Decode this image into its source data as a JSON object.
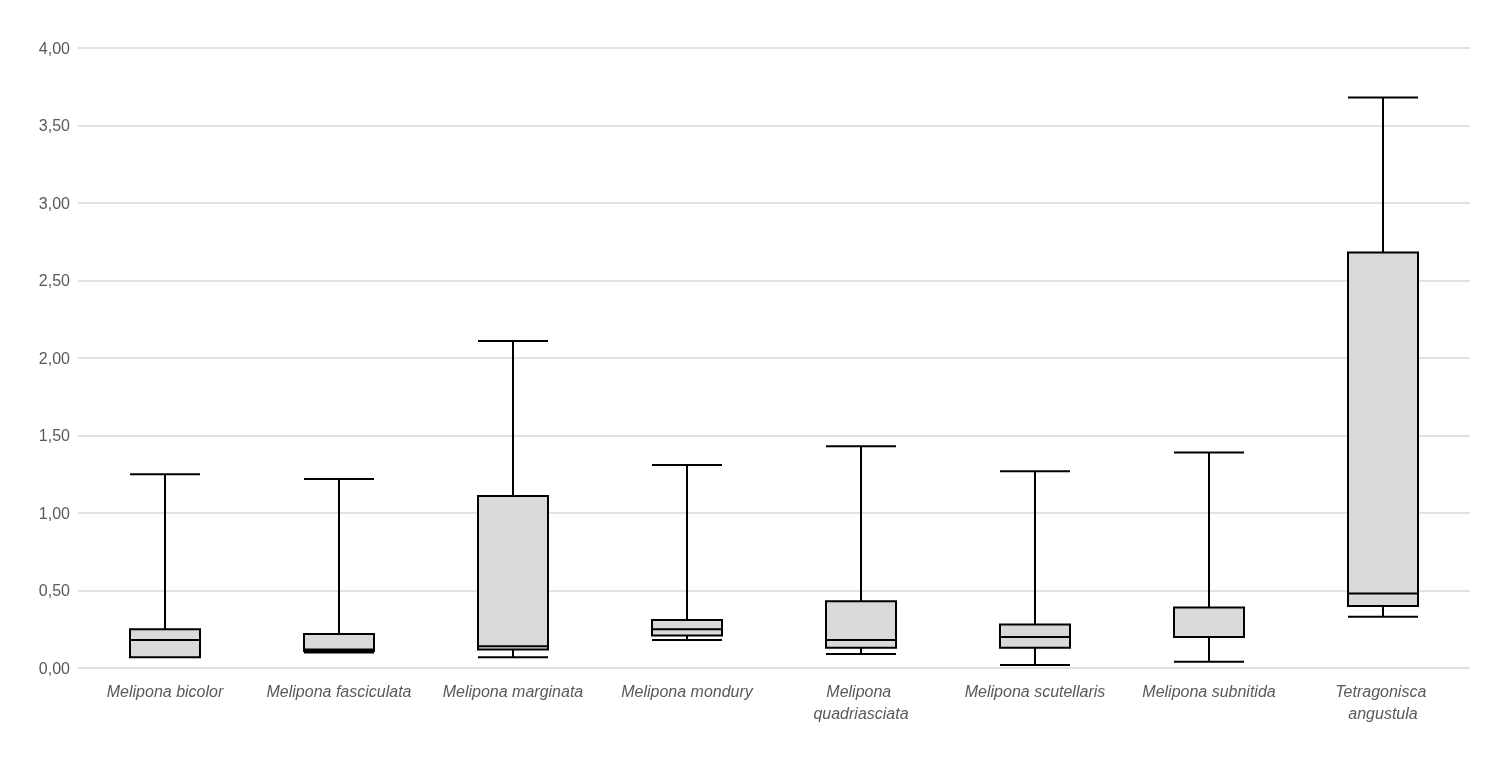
{
  "chart_data": {
    "type": "box",
    "categories": [
      "Melipona bicolor",
      "Melipona fasciculata",
      "Melipona marginata",
      "Melipona mondury",
      "Melipona quadriasciata",
      "Melipona scutellaris",
      "Melipona subnitida",
      "Tetragonisca angustula"
    ],
    "boxes": [
      {
        "low": 0.07,
        "q1": 0.07,
        "median": 0.18,
        "q3": 0.25,
        "high": 1.25
      },
      {
        "low": 0.1,
        "q1": 0.11,
        "median": 0.12,
        "q3": 0.22,
        "high": 1.22
      },
      {
        "low": 0.07,
        "q1": 0.12,
        "median": 0.14,
        "q3": 1.11,
        "high": 2.11
      },
      {
        "low": 0.18,
        "q1": 0.21,
        "median": 0.25,
        "q3": 0.31,
        "high": 1.31
      },
      {
        "low": 0.09,
        "q1": 0.13,
        "median": 0.18,
        "q3": 0.43,
        "high": 1.43
      },
      {
        "low": 0.02,
        "q1": 0.13,
        "median": 0.2,
        "q3": 0.28,
        "high": 1.27
      },
      {
        "low": 0.04,
        "q1": 0.2,
        "median": 0.2,
        "q3": 0.39,
        "high": 1.39
      },
      {
        "low": 0.33,
        "q1": 0.4,
        "median": 0.48,
        "q3": 2.68,
        "high": 3.68
      }
    ],
    "color": "#d9d9d9",
    "ylim": [
      0,
      4
    ],
    "yticks": [
      {
        "value": 0,
        "label": "0,00"
      },
      {
        "value": 0.5,
        "label": "0,50"
      },
      {
        "value": 1,
        "label": "1,00"
      },
      {
        "value": 1.5,
        "label": "1,50"
      },
      {
        "value": 2,
        "label": "2,00"
      },
      {
        "value": 2.5,
        "label": "2,50"
      },
      {
        "value": 3,
        "label": "3,00"
      },
      {
        "value": 3.5,
        "label": "3,50"
      },
      {
        "value": 4,
        "label": "4,00"
      }
    ],
    "grid": "y"
  }
}
